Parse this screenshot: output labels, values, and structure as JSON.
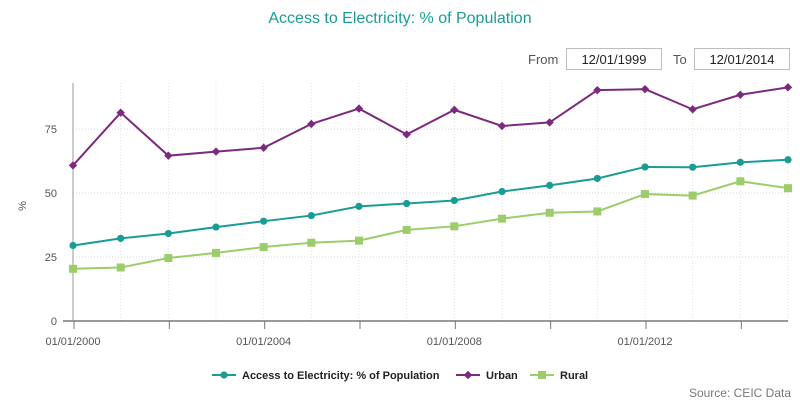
{
  "header": {
    "title": "Access to Electricity: % of Population"
  },
  "date_range": {
    "from_label": "From",
    "from_value": "12/01/1999",
    "to_label": "To",
    "to_value": "12/01/2014"
  },
  "source": "Source: CEIC Data",
  "chart_data": {
    "type": "line",
    "title": "Access to Electricity: % of Population",
    "xlabel": "",
    "ylabel": "%",
    "ylim": [
      0,
      93
    ],
    "y_ticks": [
      0,
      25,
      50,
      75
    ],
    "x_tick_labels": [
      "01/01/2000",
      "01/01/2004",
      "01/01/2008",
      "01/01/2012"
    ],
    "x": [
      "12/1999",
      "12/2000",
      "12/2001",
      "12/2002",
      "12/2003",
      "12/2004",
      "12/2005",
      "12/2006",
      "12/2007",
      "12/2008",
      "12/2009",
      "12/2010",
      "12/2011",
      "12/2012",
      "12/2013",
      "12/2014"
    ],
    "grid": true,
    "legend_position": "bottom-center",
    "series": [
      {
        "name": "Access to Electricity: % of Population",
        "color": "#1a9c96",
        "marker": "circle",
        "values": [
          29.5,
          32.3,
          34.2,
          36.7,
          39.0,
          41.2,
          44.8,
          45.9,
          47.1,
          50.6,
          53.0,
          55.7,
          60.2,
          60.1,
          62.0,
          63.0
        ]
      },
      {
        "name": "Urban",
        "color": "#7b2a7f",
        "marker": "diamond",
        "values": [
          60.8,
          81.4,
          64.6,
          66.2,
          67.7,
          77.0,
          83.0,
          72.9,
          82.5,
          76.2,
          77.6,
          90.2,
          90.6,
          82.7,
          88.4,
          91.3
        ]
      },
      {
        "name": "Rural",
        "color": "#9ccd6a",
        "marker": "square",
        "values": [
          20.4,
          20.9,
          24.6,
          26.6,
          28.9,
          30.6,
          31.4,
          35.6,
          37.0,
          40.0,
          42.3,
          42.8,
          49.6,
          49.0,
          54.6,
          51.9
        ]
      }
    ]
  }
}
